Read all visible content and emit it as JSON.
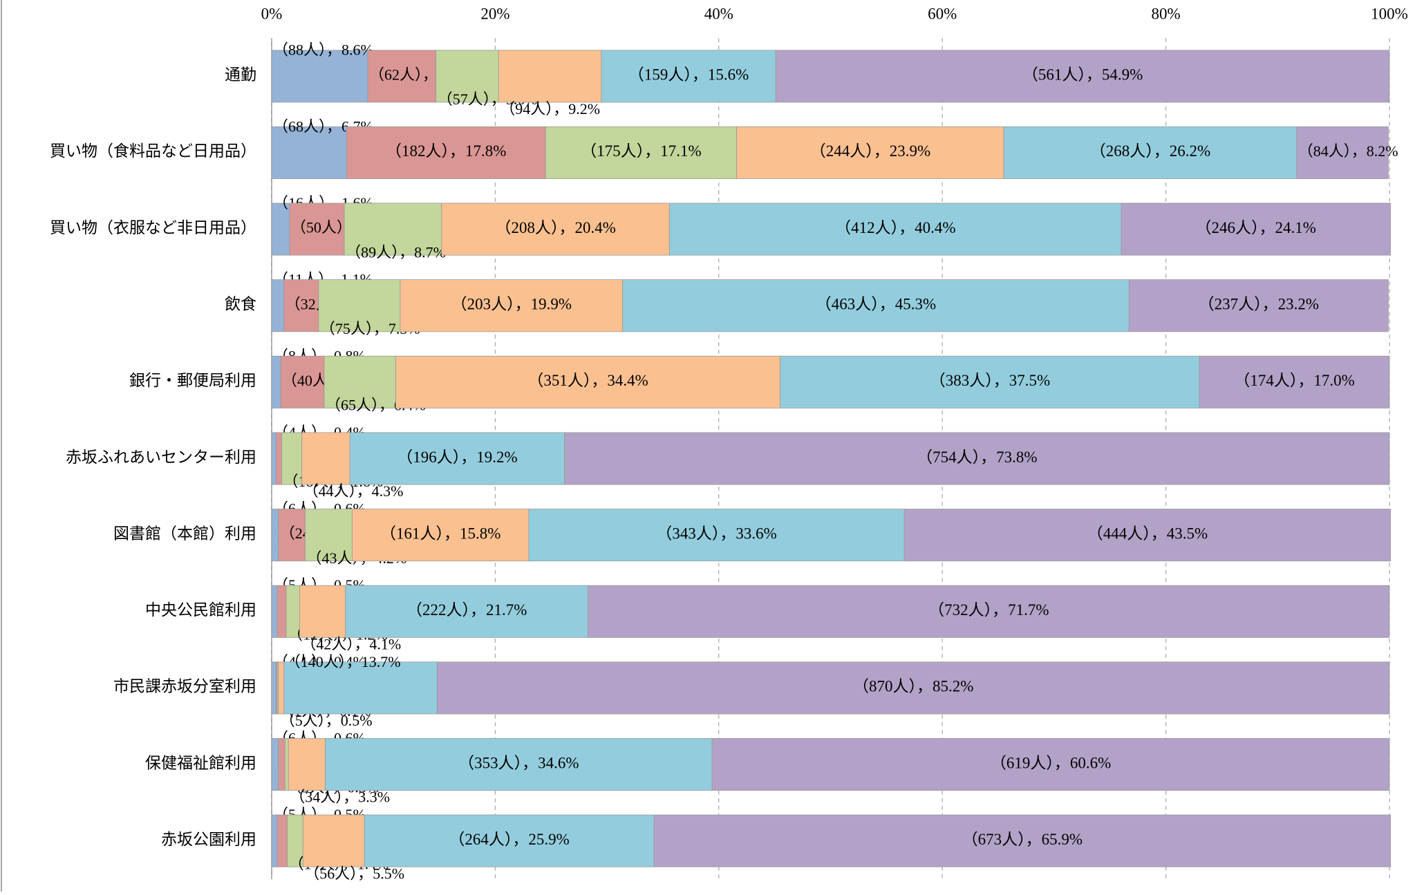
{
  "chart_data": {
    "type": "stacked_barh",
    "categories": [
      "通勤",
      "買い物（食料品など日用品）",
      "買い物（衣服など非日用品）",
      "飲食",
      "銀行・郵便局利用",
      "赤坂ふれあいセンター利用",
      "図書館（本館）利用",
      "中央公民館利用",
      "市民課赤坂分室利用",
      "保健福祉館利用",
      "赤坂公園利用"
    ],
    "series": [
      {
        "color": "#95b3d7",
        "values": [
          8.6,
          6.7,
          1.6,
          1.1,
          0.8,
          0.4,
          0.6,
          0.5,
          0.4,
          0.6,
          0.5
        ],
        "value_labels": [
          "（88人），8.6%",
          "（68人），6.7%",
          "（16人），1.6%",
          "（11人），1.1%",
          "（8人），0.8%",
          "（4人），0.4%",
          "（6人），0.6%",
          "（5人），0.5%",
          "（4人），0.4%",
          "（6人），0.6%",
          "（5人），0.5%"
        ]
      },
      {
        "color": "#d99694",
        "values": [
          6.1,
          17.8,
          4.9,
          3.1,
          3.9,
          0.5,
          2.4,
          0.8,
          0.1,
          0.6,
          0.9
        ],
        "value_labels": [
          "（62人），6.1%",
          "（182人），17.8%",
          "（50人），4.9%",
          "（32人），3.1%",
          "（40人），3.9%",
          "（5人），0.5%",
          "（24人），2.4%",
          "（8人），0.8%",
          "（1人），0.1%",
          "（6人），0.6%",
          "（9人），0.9%"
        ]
      },
      {
        "color": "#c3d69b",
        "values": [
          5.6,
          17.1,
          8.7,
          7.3,
          6.4,
          1.8,
          4.2,
          1.2,
          0.1,
          0.3,
          1.4
        ],
        "value_labels": [
          "（57人），5.6%",
          "（175人），17.1%",
          "（89人），8.7%",
          "（75人），7.3%",
          "（65人），6.4%",
          "（18人），1.8%",
          "（43人），4.2%",
          "（12人），1.2%",
          "（1人），0.1%",
          "（3人），0.3%",
          "（14人），1.4%"
        ]
      },
      {
        "color": "#fac090",
        "values": [
          9.2,
          23.9,
          20.4,
          19.9,
          34.4,
          4.3,
          15.8,
          4.1,
          0.5,
          3.3,
          5.5
        ],
        "value_labels": [
          "（94人），9.2%",
          "（244人），23.9%",
          "（208人），20.4%",
          "（203人），19.9%",
          "（351人），34.4%",
          "（44人），4.3%",
          "（161人），15.8%",
          "（42人），4.1%",
          "（5人），0.5%",
          "（34人），3.3%",
          "（56人），5.5%"
        ]
      },
      {
        "color": "#93cddd",
        "values": [
          15.6,
          26.2,
          40.4,
          45.3,
          37.5,
          19.2,
          33.6,
          21.7,
          13.7,
          34.6,
          25.9
        ],
        "value_labels": [
          "（159人），15.6%",
          "（268人），26.2%",
          "（412人），40.4%",
          "（463人），45.3%",
          "（383人），37.5%",
          "（196人），19.2%",
          "（343人），33.6%",
          "（222人），21.7%",
          "（140人），13.7%",
          "（353人），34.6%",
          "（264人），25.9%"
        ]
      },
      {
        "color": "#b3a2c7",
        "values": [
          54.9,
          8.2,
          24.1,
          23.2,
          17.0,
          73.8,
          43.5,
          71.7,
          85.2,
          60.6,
          65.9
        ],
        "value_labels": [
          "（561人），54.9%",
          "（84人），8.2%",
          "（246人），24.1%",
          "（237人），23.2%",
          "（174人），17.0%",
          "（754人），73.8%",
          "（444人），43.5%",
          "（732人），71.7%",
          "（870人），85.2%",
          "（619人），60.6%",
          "（673人），65.9%"
        ]
      }
    ],
    "xlim": [
      0,
      100
    ],
    "xticks": [
      {
        "value": 0,
        "label": "0%"
      },
      {
        "value": 20,
        "label": "20%"
      },
      {
        "value": 40,
        "label": "40%"
      },
      {
        "value": 60,
        "label": "60%"
      },
      {
        "value": 80,
        "label": "80%"
      },
      {
        "value": 100,
        "label": "100%"
      }
    ],
    "grid": true
  }
}
